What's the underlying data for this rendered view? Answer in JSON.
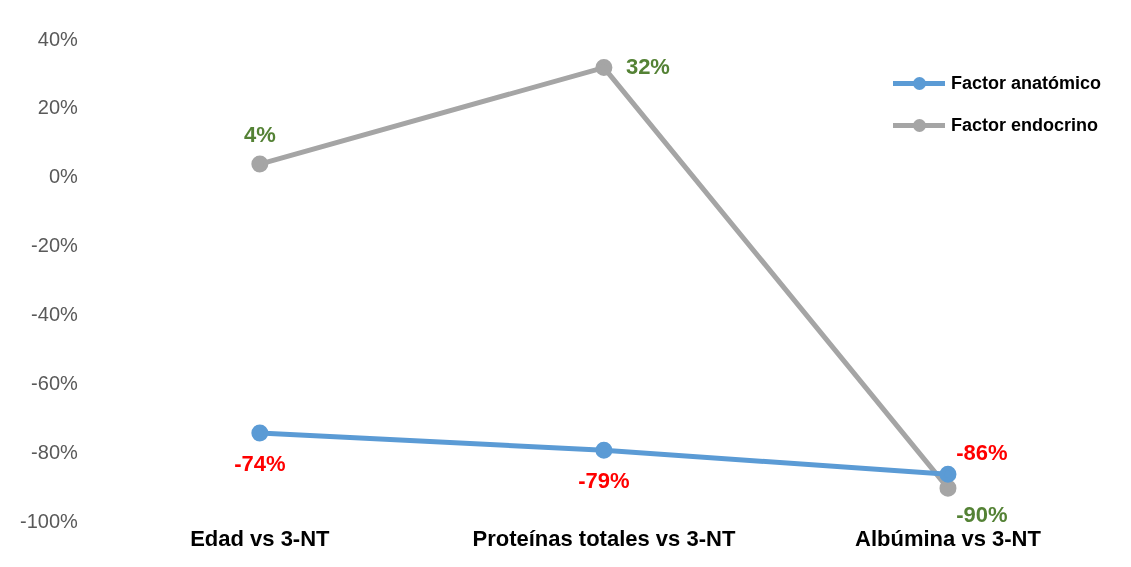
{
  "chart_data": {
    "type": "line",
    "categories": [
      "Edad vs 3-NT",
      "Proteínas totales vs 3-NT",
      "Albúmina vs 3-NT"
    ],
    "series": [
      {
        "name": "Factor anatómico",
        "color": "#5b9bd5",
        "values": [
          -74,
          -79,
          -86
        ],
        "value_labels": [
          "-74%",
          "-79%",
          "-86%"
        ]
      },
      {
        "name": "Factor endocrino",
        "color": "#a5a5a5",
        "values": [
          4,
          32,
          -90
        ],
        "value_labels": [
          "4%",
          "32%",
          "-90%"
        ]
      }
    ],
    "ylim": [
      -100,
      40
    ],
    "yticks": [
      {
        "value": -100,
        "label": "-100%"
      },
      {
        "value": -80,
        "label": "-80%"
      },
      {
        "value": -60,
        "label": "-60%"
      },
      {
        "value": -40,
        "label": "-40%"
      },
      {
        "value": -20,
        "label": "-20%"
      },
      {
        "value": 0,
        "label": "0%"
      },
      {
        "value": 20,
        "label": "20%"
      },
      {
        "value": 40,
        "label": "40%"
      }
    ],
    "grid": false,
    "legend": "top right",
    "marker": "circle",
    "line_style": "solid"
  }
}
